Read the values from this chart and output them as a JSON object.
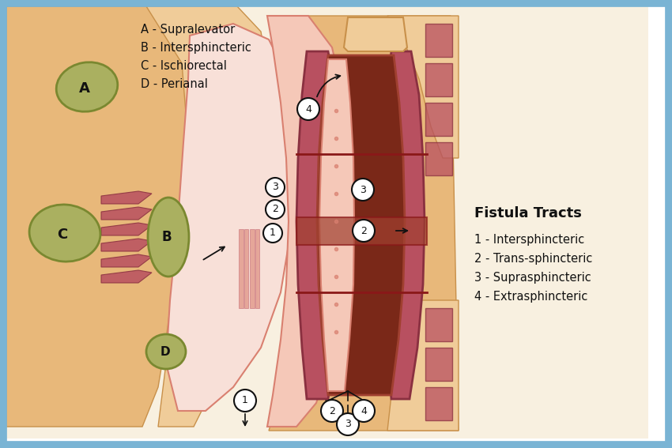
{
  "bg_color": "#ffffff",
  "border_color": "#7ab4d4",
  "border_lw": 7,
  "legend_A": "A - Supralevator",
  "legend_B": "B - Intersphincteric",
  "legend_C": "C - Ischiorectal",
  "legend_D": "D - Perianal",
  "fistula_title": "Fistula Tracts",
  "fistula_1": "1 - Intersphincteric",
  "fistula_2": "2 - Trans-sphincteric",
  "fistula_3": "3 - Suprasphincteric",
  "fistula_4": "4 - Extrasphincteric",
  "fat_orange": "#e8b87a",
  "fat_orange_dark": "#c8904a",
  "fat_orange_light": "#f0cc99",
  "pink_skin": "#e8a090",
  "pink_light": "#f5c8b8",
  "pink_medium": "#d98070",
  "pink_pale": "#f8e0d8",
  "muscle_red": "#b85060",
  "muscle_dark": "#8a3040",
  "olive_fill": "#aab060",
  "olive_dark": "#7a8830",
  "olive_light": "#c8cc80",
  "dark_brown": "#7a2818",
  "mid_brown": "#a04030",
  "cream": "#f8f0e0",
  "white": "#ffffff",
  "black": "#111111",
  "dark_red_line": "#8a1818"
}
